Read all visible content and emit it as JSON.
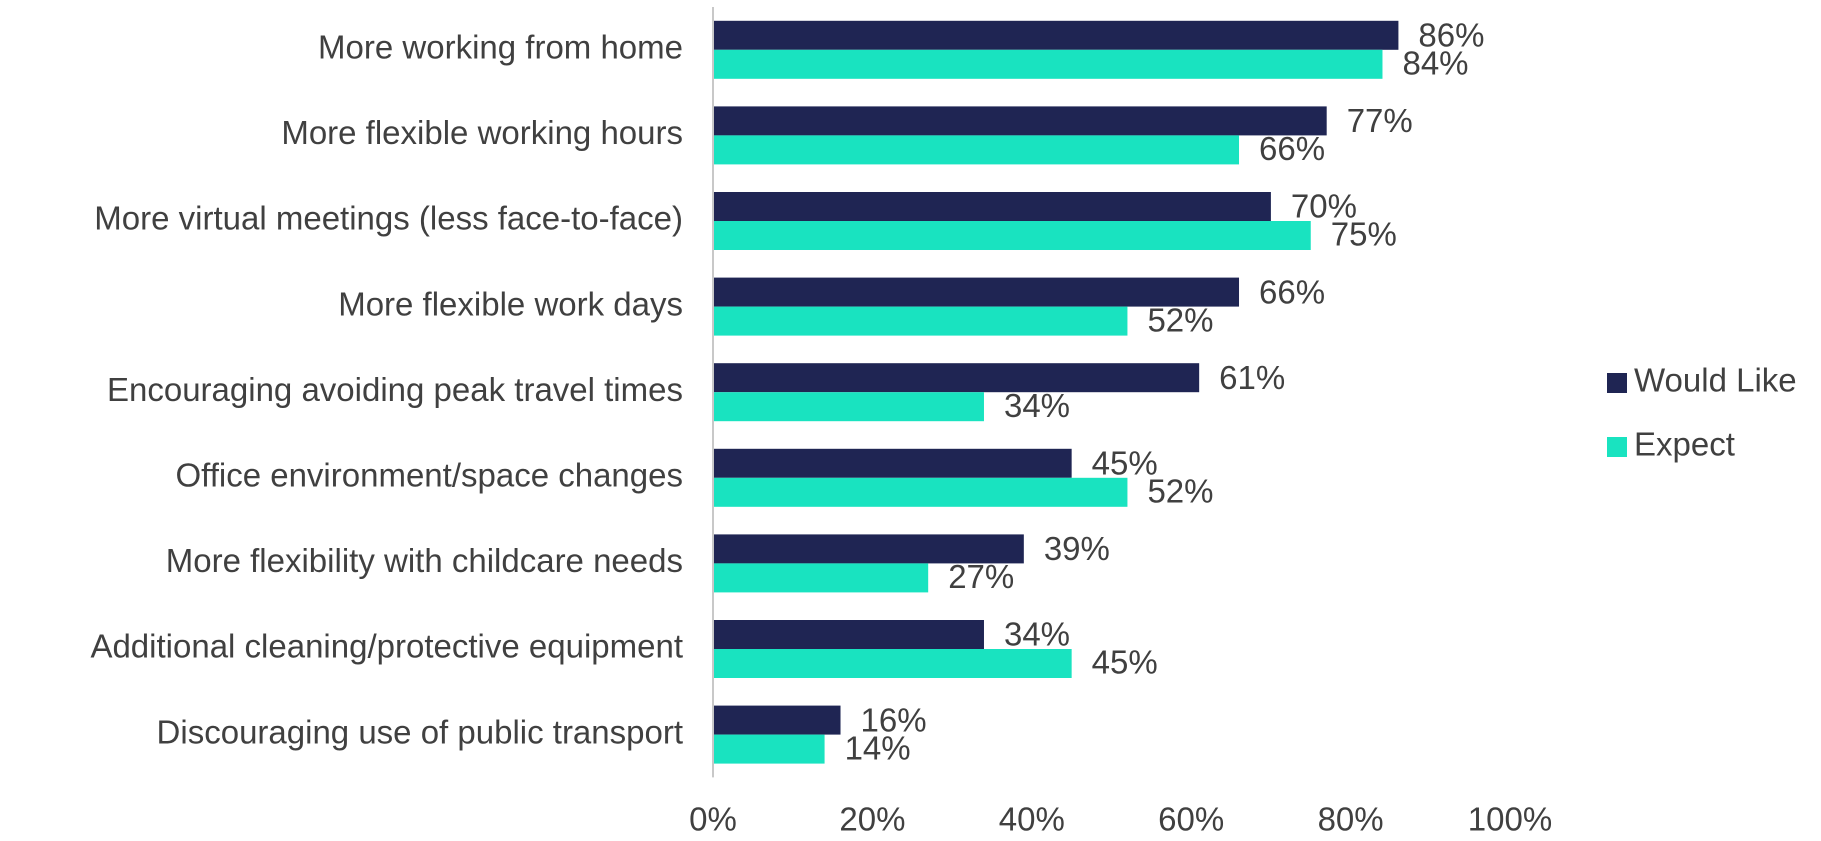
{
  "chart_data": {
    "type": "hbar",
    "categories": [
      "More working from home",
      "More flexible working hours",
      "More virtual meetings (less face-to-face)",
      "More flexible work days",
      "Encouraging avoiding peak travel times",
      "Office environment/space changes",
      "More flexibility with childcare needs",
      "Additional cleaning/protective equipment",
      "Discouraging use of public transport"
    ],
    "series": [
      {
        "name": "Would Like",
        "color": "#1f2553",
        "values": [
          86,
          77,
          70,
          66,
          61,
          45,
          39,
          34,
          16
        ],
        "value_labels": [
          "86%",
          "77%",
          "70%",
          "66%",
          "61%",
          "45%",
          "39%",
          "34%",
          "16%"
        ]
      },
      {
        "name": "Expect",
        "color": "#19e3c0",
        "values": [
          84,
          66,
          75,
          52,
          34,
          52,
          27,
          45,
          14
        ],
        "value_labels": [
          "84%",
          "66%",
          "75%",
          "52%",
          "34%",
          "52%",
          "27%",
          "45%",
          "14%"
        ]
      }
    ],
    "xlim": [
      0,
      100
    ],
    "xticks": [
      {
        "value": 0,
        "label": "0%"
      },
      {
        "value": 20,
        "label": "20%"
      },
      {
        "value": 40,
        "label": "40%"
      },
      {
        "value": 60,
        "label": "60%"
      },
      {
        "value": 80,
        "label": "80%"
      },
      {
        "value": 100,
        "label": "100%"
      }
    ],
    "legend": "right"
  }
}
